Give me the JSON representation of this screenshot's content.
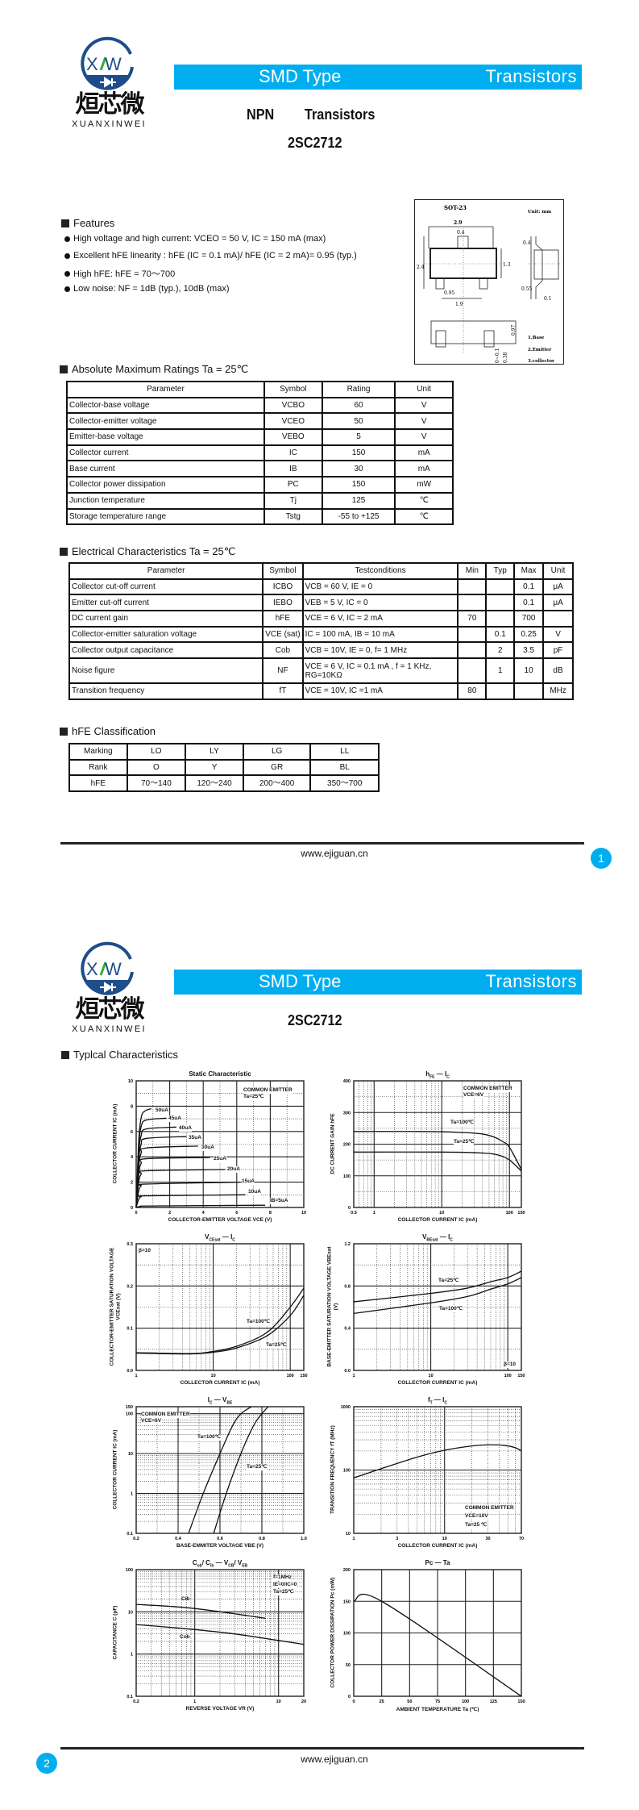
{
  "brand": {
    "name_cn": "烜芯微",
    "name_en": "XUANXINWEI",
    "logo_letters": "XW",
    "colors": {
      "blue": "#1E4D8C",
      "green": "#3BAA35",
      "accent": "#00AEEF"
    }
  },
  "header": {
    "left": "SMD Type",
    "right": "Transistors"
  },
  "page1": {
    "type_npn": "NPN",
    "type_label": "Transistors",
    "part": "2SC2712",
    "features": {
      "title": "Features",
      "items": [
        "High voltage and high current: VCEO = 50 V, IC = 150 mA (max)",
        "Excellent hFE linearity : hFE (IC = 0.1 mA)/ hFE (IC = 2 mA)= 0.95 (typ.)",
        "High hFE: hFE = 70～700",
        "Low noise: NF = 1dB (typ.), 10dB (max)"
      ]
    },
    "package": {
      "name": "SOT-23",
      "unit": "Unit: mm",
      "dims": [
        "2.9",
        "0.4",
        "2.4",
        "1.3",
        "0.95",
        "1.9",
        "0.4",
        "0.55",
        "0.1",
        "0.97",
        "0.38",
        "0~0.1"
      ],
      "pins": [
        "1.Base",
        "2.Emitter",
        "3.collector"
      ]
    },
    "abs_max": {
      "title": "Absolute Maximum Ratings Ta = 25℃",
      "headers": [
        "Parameter",
        "Symbol",
        "Rating",
        "Unit"
      ],
      "rows": [
        [
          "Collector-base voltage",
          "VCBO",
          "60",
          "V"
        ],
        [
          "Collector-emitter voltage",
          "VCEO",
          "50",
          "V"
        ],
        [
          "Emitter-base voltage",
          "VEBO",
          "5",
          "V"
        ],
        [
          "Collector current",
          "IC",
          "150",
          "mA"
        ],
        [
          "Base current",
          "IB",
          "30",
          "mA"
        ],
        [
          "Collector power dissipation",
          "PC",
          "150",
          "mW"
        ],
        [
          "Junction temperature",
          "Tj",
          "125",
          "℃"
        ],
        [
          "Storage temperature range",
          "Tstg",
          "-55 to +125",
          "℃"
        ]
      ]
    },
    "electrical": {
      "title": "Electrical Characteristics Ta = 25℃",
      "headers": [
        "Parameter",
        "Symbol",
        "Testconditions",
        "Min",
        "Typ",
        "Max",
        "Unit"
      ],
      "rows": [
        [
          "Collector cut-off current",
          "ICBO",
          "VCB = 60 V, IE = 0",
          "",
          "",
          "0.1",
          "μA"
        ],
        [
          "Emitter cut-off current",
          "IEBO",
          "VEB = 5 V, IC = 0",
          "",
          "",
          "0.1",
          "μA"
        ],
        [
          "DC current gain",
          "hFE",
          "VCE = 6 V, IC = 2 mA",
          "70",
          "",
          "700",
          ""
        ],
        [
          "Collector-emitter saturation voltage",
          "VCE (sat)",
          "IC = 100 mA, IB = 10 mA",
          "",
          "0.1",
          "0.25",
          "V"
        ],
        [
          "Collector output capacitance",
          "Cob",
          "VCB = 10V, IE = 0, f= 1 MHz",
          "",
          "2",
          "3.5",
          "pF"
        ],
        [
          "Noise figure",
          "NF",
          "VCE = 6 V, IC = 0.1 mA , f = 1 KHz, RG=10KΩ",
          "",
          "1",
          "10",
          "dB"
        ],
        [
          "Transition frequency",
          "fT",
          "VCE = 10V, IC =1 mA",
          "80",
          "",
          "",
          "MHz"
        ]
      ]
    },
    "hfe_class": {
      "title": "hFE Classification",
      "rows": [
        [
          "Marking",
          "LO",
          "LY",
          "LG",
          "LL"
        ],
        [
          "Rank",
          "O",
          "Y",
          "GR",
          "BL"
        ],
        [
          "hFE",
          "70～140",
          "120～240",
          "200～400",
          "350～700"
        ]
      ]
    },
    "footer": {
      "url": "www.ejiguan.cn",
      "page": "1"
    }
  },
  "page2": {
    "part": "2SC2712",
    "section_title": "Typlcal Characteristics",
    "footer": {
      "url": "www.ejiguan.cn",
      "page": "2"
    }
  },
  "chart_data": [
    {
      "type": "line",
      "title": "Static Characteristic",
      "xlabel": "COLLECTOR-EMITTER VOLTAGE  VCE  (V)",
      "ylabel": "COLLECTOR CURRENT  IC  (mA)",
      "xlim": [
        0,
        10
      ],
      "ylim": [
        0,
        10
      ],
      "xlog": false,
      "ylog": false,
      "grid": true,
      "xticks": [
        "0",
        "2",
        "4",
        "6",
        "8",
        "10"
      ],
      "yticks": [
        "0",
        "2",
        "4",
        "6",
        "8",
        "10"
      ],
      "annotations": [
        "COMMON EMITTER",
        "Ta=25℃"
      ],
      "series": [
        {
          "name": "50uA",
          "points": [
            [
              0,
              0
            ],
            [
              0.15,
              5.2
            ],
            [
              0.3,
              7.1
            ],
            [
              0.5,
              7.6
            ],
            [
              0.9,
              7.8
            ]
          ]
        },
        {
          "name": "45uA",
          "points": [
            [
              0,
              0
            ],
            [
              0.15,
              4.7
            ],
            [
              0.3,
              6.4
            ],
            [
              0.6,
              6.9
            ],
            [
              1.8,
              7.05
            ]
          ]
        },
        {
          "name": "40uA",
          "points": [
            [
              0,
              0
            ],
            [
              0.15,
              4.2
            ],
            [
              0.3,
              5.7
            ],
            [
              0.6,
              6.2
            ],
            [
              2.4,
              6.35
            ]
          ]
        },
        {
          "name": "35uA",
          "points": [
            [
              0,
              0
            ],
            [
              0.15,
              3.7
            ],
            [
              0.3,
              5.0
            ],
            [
              0.6,
              5.45
            ],
            [
              3.0,
              5.6
            ]
          ]
        },
        {
          "name": "30uA",
          "points": [
            [
              0,
              0
            ],
            [
              0.15,
              3.2
            ],
            [
              0.3,
              4.3
            ],
            [
              0.6,
              4.7
            ],
            [
              3.7,
              4.85
            ]
          ]
        },
        {
          "name": "25uA",
          "points": [
            [
              0,
              0
            ],
            [
              0.15,
              2.6
            ],
            [
              0.3,
              3.5
            ],
            [
              0.6,
              3.85
            ],
            [
              4.4,
              3.95
            ]
          ]
        },
        {
          "name": "20uA",
          "points": [
            [
              0,
              0
            ],
            [
              0.15,
              2.0
            ],
            [
              0.3,
              2.65
            ],
            [
              0.6,
              2.9
            ],
            [
              5.3,
              3.0
            ]
          ]
        },
        {
          "name": "15uA",
          "points": [
            [
              0,
              0
            ],
            [
              0.15,
              1.3
            ],
            [
              0.3,
              1.7
            ],
            [
              0.6,
              1.85
            ],
            [
              6.2,
              2.0
            ]
          ]
        },
        {
          "name": "10uA",
          "points": [
            [
              0,
              0
            ],
            [
              0.15,
              0.65
            ],
            [
              0.3,
              0.85
            ],
            [
              0.6,
              0.92
            ],
            [
              6.5,
              1.0
            ]
          ]
        },
        {
          "name": "IB=5uA",
          "points": [
            [
              0,
              0
            ],
            [
              0.3,
              0.1
            ],
            [
              1,
              0.12
            ],
            [
              7.7,
              0.18
            ]
          ]
        }
      ]
    },
    {
      "type": "line",
      "title_a": "h",
      "title_a_sub": "FE",
      "title_b": "I",
      "title_b_sub": "C",
      "xlabel": "COLLECTOR CURRENT  IC  (mA)",
      "ylabel": "DC CURRENT GAIN  hFE",
      "xlim": [
        0.5,
        150
      ],
      "ylim": [
        0,
        400
      ],
      "xlog": true,
      "ylog": false,
      "grid": true,
      "xticks": [
        "0.5",
        "1",
        "10",
        "100",
        "150"
      ],
      "yticks": [
        "0",
        "100",
        "200",
        "300",
        "400"
      ],
      "annotations": [
        "COMMON EMITTER",
        "VCE=6V"
      ],
      "series": [
        {
          "name": "Ta=100℃",
          "points": [
            [
              0.5,
              240
            ],
            [
              5,
              240
            ],
            [
              20,
              237
            ],
            [
              40,
              232
            ],
            [
              60,
              222
            ],
            [
              80,
              208
            ],
            [
              100,
              190
            ],
            [
              150,
              120
            ]
          ]
        },
        {
          "name": "Ta=25℃",
          "points": [
            [
              0.5,
              175
            ],
            [
              10,
              175
            ],
            [
              40,
              172
            ],
            [
              70,
              165
            ],
            [
              100,
              150
            ],
            [
              150,
              115
            ]
          ]
        }
      ]
    },
    {
      "type": "line",
      "title_a": "V",
      "title_a_sub": "CEsat",
      "title_b": "I",
      "title_b_sub": "C",
      "xlabel": "COLLECTOR CURRENT  IC  (mA)",
      "ylabel": "COLLECTOR-EMITTER SATURATION VOLTAGE  VCEsat  (V)",
      "xlim": [
        1,
        150
      ],
      "ylim": [
        0,
        0.3
      ],
      "xlog": true,
      "ylog": false,
      "grid": true,
      "xticks": [
        "1",
        "10",
        "100",
        "150"
      ],
      "yticks": [
        "0.0",
        "0.1",
        "0.2",
        "0.3"
      ],
      "annotations": [
        "β=10"
      ],
      "series": [
        {
          "name": "Ta=100℃",
          "points": [
            [
              1,
              0.042
            ],
            [
              5,
              0.04
            ],
            [
              10,
              0.045
            ],
            [
              20,
              0.057
            ],
            [
              50,
              0.09
            ],
            [
              100,
              0.15
            ],
            [
              150,
              0.195
            ]
          ]
        },
        {
          "name": "Ta=25℃",
          "points": [
            [
              1,
              0.041
            ],
            [
              5,
              0.039
            ],
            [
              10,
              0.043
            ],
            [
              20,
              0.053
            ],
            [
              50,
              0.082
            ],
            [
              100,
              0.13
            ],
            [
              150,
              0.178
            ]
          ]
        }
      ]
    },
    {
      "type": "line",
      "title_a": "V",
      "title_a_sub": "BEsat",
      "title_b": "I",
      "title_b_sub": "C",
      "xlabel": "COLLECTOR CURRENT  IC  (mA)",
      "ylabel": "BASE-EMITTER SATURATION VOLTAGE  VBEsat  (V)",
      "xlim": [
        1,
        150
      ],
      "ylim": [
        0,
        1.2
      ],
      "xlog": true,
      "ylog": false,
      "grid": true,
      "xticks": [
        "1",
        "10",
        "100",
        "150"
      ],
      "yticks": [
        "0.0",
        "0.4",
        "0.8",
        "1.2"
      ],
      "annotations": [
        "β=10"
      ],
      "series": [
        {
          "name": "Ta=25℃",
          "points": [
            [
              1,
              0.65
            ],
            [
              10,
              0.73
            ],
            [
              30,
              0.78
            ],
            [
              60,
              0.84
            ],
            [
              100,
              0.88
            ],
            [
              150,
              0.94
            ]
          ]
        },
        {
          "name": "Ta=100℃",
          "points": [
            [
              1,
              0.54
            ],
            [
              10,
              0.64
            ],
            [
              30,
              0.7
            ],
            [
              60,
              0.77
            ],
            [
              100,
              0.82
            ],
            [
              150,
              0.88
            ]
          ]
        }
      ]
    },
    {
      "type": "line",
      "title_a": "I",
      "title_a_sub": "C",
      "title_b": "V",
      "title_b_sub": "BE",
      "xlabel": "BASE-EMMITER VOLTAGE  VBE  (V)",
      "ylabel": "COLLECTOR CURRENT  IC  (mA)",
      "xlim": [
        0.2,
        1.0
      ],
      "ylim": [
        0.1,
        150
      ],
      "xlog": false,
      "ylog": true,
      "grid": true,
      "xticks": [
        "0.2",
        "0.4",
        "0.6",
        "0.8",
        "1.0"
      ],
      "yticks": [
        "0.1",
        "1",
        "10",
        "100",
        "150"
      ],
      "annotations": [
        "COMMON EMITTER",
        "VCE=6V"
      ],
      "series": [
        {
          "name": "Ta=100℃",
          "points": [
            [
              0.45,
              0.1
            ],
            [
              0.52,
              1
            ],
            [
              0.6,
              10
            ],
            [
              0.66,
              50
            ],
            [
              0.7,
              100
            ],
            [
              0.75,
              150
            ]
          ]
        },
        {
          "name": "Ta=25℃",
          "points": [
            [
              0.57,
              0.1
            ],
            [
              0.63,
              1
            ],
            [
              0.7,
              10
            ],
            [
              0.76,
              50
            ],
            [
              0.8,
              100
            ],
            [
              0.83,
              150
            ]
          ]
        }
      ]
    },
    {
      "type": "line",
      "title_a": "f",
      "title_a_sub": "T",
      "title_b": "I",
      "title_b_sub": "C",
      "xlabel": "COLLECTOR CURRENT  IC  (mA)",
      "ylabel": "TRANSITION FREQUENCY  fT  (MHz)",
      "xlim": [
        1,
        70
      ],
      "ylim": [
        10,
        1000
      ],
      "xlog": true,
      "ylog": true,
      "grid": true,
      "xticks": [
        "1",
        "3",
        "10",
        "30",
        "70"
      ],
      "yticks": [
        "10",
        "100",
        "1000"
      ],
      "annotations": [
        "COMMON EMITTER",
        "VCE=10V",
        "Ta=25 ℃"
      ],
      "series": [
        {
          "points": [
            [
              1,
              75
            ],
            [
              2,
              105
            ],
            [
              5,
              160
            ],
            [
              10,
              205
            ],
            [
              20,
              240
            ],
            [
              30,
              250
            ],
            [
              45,
              245
            ],
            [
              60,
              225
            ],
            [
              70,
              200
            ]
          ]
        }
      ]
    },
    {
      "type": "line",
      "title_a": "C",
      "title_a_sub": "ob",
      "title_a2": "/ C",
      "title_a2_sub": "ib",
      "title_b": "V",
      "title_b_sub": "CB",
      "title_b2": "/ V",
      "title_b2_sub": "EB",
      "xlabel": "REVERSE VOLTAGE  VR  (V)",
      "ylabel": "CAPACITANCE  C  (pF)",
      "xlim": [
        0.2,
        20
      ],
      "ylim": [
        0.1,
        100
      ],
      "xlog": true,
      "ylog": true,
      "grid": true,
      "xticks": [
        "0.2",
        "1",
        "10",
        "20"
      ],
      "yticks": [
        "0.1",
        "1",
        "10",
        "100"
      ],
      "annotations": [
        "f=1MHz",
        "IE=0/IC=0",
        "Ta=25℃"
      ],
      "series": [
        {
          "name": "Cib",
          "points": [
            [
              0.2,
              15
            ],
            [
              0.5,
              13.5
            ],
            [
              1,
              12
            ],
            [
              3,
              9
            ],
            [
              7,
              7
            ]
          ]
        },
        {
          "name": "Cob",
          "points": [
            [
              0.2,
              5
            ],
            [
              0.5,
              4.3
            ],
            [
              1,
              3.8
            ],
            [
              3,
              3
            ],
            [
              10,
              2.1
            ],
            [
              20,
              1.7
            ]
          ]
        }
      ]
    },
    {
      "type": "line",
      "title_a": "Pc",
      "title_b": "Ta",
      "xlabel": "AMBIENT TEMPERATURE  Ta  (℃)",
      "ylabel": "COLLECTOR POWER DISSIPATION  Pc  (mW)",
      "xlim": [
        0,
        150
      ],
      "ylim": [
        0,
        200
      ],
      "xlog": false,
      "ylog": false,
      "grid": true,
      "xticks": [
        "0",
        "25",
        "50",
        "75",
        "100",
        "125",
        "150"
      ],
      "yticks": [
        "0",
        "50",
        "100",
        "150",
        "200"
      ],
      "annotations": [],
      "series": [
        {
          "points": [
            [
              0,
              150
            ],
            [
              25,
              150
            ],
            [
              150,
              0
            ]
          ]
        }
      ]
    }
  ]
}
